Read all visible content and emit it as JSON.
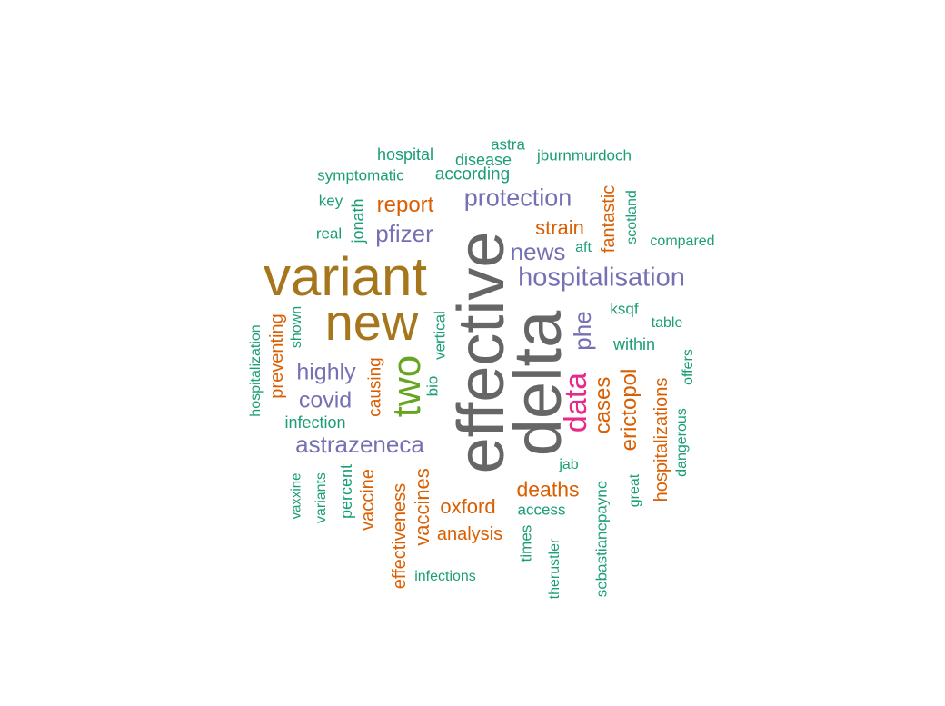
{
  "colors": {
    "gray": "#666666",
    "olive": "#a6761d",
    "pink": "#e7298a",
    "purple": "#7570b3",
    "green": "#66a61e",
    "orange": "#d95f02",
    "teal": "#1b9e77"
  },
  "words": [
    {
      "text": "effective",
      "color": "gray"
    },
    {
      "text": "delta",
      "color": "gray"
    },
    {
      "text": "variant",
      "color": "olive"
    },
    {
      "text": "new",
      "color": "olive"
    },
    {
      "text": "two",
      "color": "green"
    },
    {
      "text": "data",
      "color": "pink"
    },
    {
      "text": "hospitalisation",
      "color": "purple"
    },
    {
      "text": "protection",
      "color": "purple"
    },
    {
      "text": "astrazeneca",
      "color": "purple"
    },
    {
      "text": "news",
      "color": "purple"
    },
    {
      "text": "pfizer",
      "color": "purple"
    },
    {
      "text": "highly",
      "color": "purple"
    },
    {
      "text": "covid",
      "color": "purple"
    },
    {
      "text": "phe",
      "color": "purple"
    },
    {
      "text": "report",
      "color": "orange"
    },
    {
      "text": "strain",
      "color": "orange"
    },
    {
      "text": "deaths",
      "color": "orange"
    },
    {
      "text": "oxford",
      "color": "orange"
    },
    {
      "text": "analysis",
      "color": "orange"
    },
    {
      "text": "cases",
      "color": "orange"
    },
    {
      "text": "erictopol",
      "color": "orange"
    },
    {
      "text": "hospitalizations",
      "color": "orange"
    },
    {
      "text": "fantastic",
      "color": "orange"
    },
    {
      "text": "vaccines",
      "color": "orange"
    },
    {
      "text": "vaccine",
      "color": "orange"
    },
    {
      "text": "effectiveness",
      "color": "orange"
    },
    {
      "text": "preventing",
      "color": "orange"
    },
    {
      "text": "causing",
      "color": "orange"
    },
    {
      "text": "hospital",
      "color": "teal"
    },
    {
      "text": "disease",
      "color": "teal"
    },
    {
      "text": "astra",
      "color": "teal"
    },
    {
      "text": "jburnmurdoch",
      "color": "teal"
    },
    {
      "text": "symptomatic",
      "color": "teal"
    },
    {
      "text": "according",
      "color": "teal"
    },
    {
      "text": "key",
      "color": "teal"
    },
    {
      "text": "jonath",
      "color": "teal"
    },
    {
      "text": "real",
      "color": "teal"
    },
    {
      "text": "aft",
      "color": "teal"
    },
    {
      "text": "scotland",
      "color": "teal"
    },
    {
      "text": "compared",
      "color": "teal"
    },
    {
      "text": "ksqf",
      "color": "teal"
    },
    {
      "text": "table",
      "color": "teal"
    },
    {
      "text": "within",
      "color": "teal"
    },
    {
      "text": "offers",
      "color": "teal"
    },
    {
      "text": "dangerous",
      "color": "teal"
    },
    {
      "text": "great",
      "color": "teal"
    },
    {
      "text": "jab",
      "color": "teal"
    },
    {
      "text": "access",
      "color": "teal"
    },
    {
      "text": "times",
      "color": "teal"
    },
    {
      "text": "therustler",
      "color": "teal"
    },
    {
      "text": "sebastianepayne",
      "color": "teal"
    },
    {
      "text": "infections",
      "color": "teal"
    },
    {
      "text": "infection",
      "color": "teal"
    },
    {
      "text": "percent",
      "color": "teal"
    },
    {
      "text": "variants",
      "color": "teal"
    },
    {
      "text": "vaxxine",
      "color": "teal"
    },
    {
      "text": "hospitalization",
      "color": "teal"
    },
    {
      "text": "shown",
      "color": "teal"
    },
    {
      "text": "vertical",
      "color": "teal"
    },
    {
      "text": "bio",
      "color": "teal"
    }
  ]
}
